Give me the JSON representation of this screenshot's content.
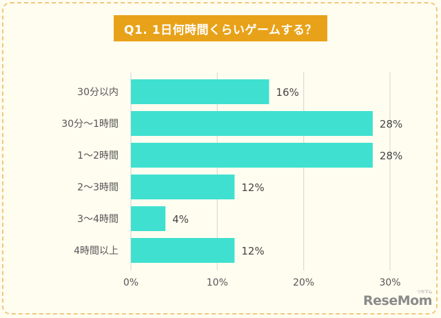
{
  "chart_data": {
    "type": "bar",
    "orientation": "horizontal",
    "title": "Q1. 1日何時間くらいゲームする？",
    "categories": [
      "30分以内",
      "30分～1時間",
      "1～2時間",
      "2～3時間",
      "3～4時間",
      "4時間以上"
    ],
    "values": [
      16,
      28,
      28,
      12,
      4,
      12
    ],
    "value_labels": [
      "16%",
      "28%",
      "28%",
      "12%",
      "4%",
      "12%"
    ],
    "xlim": [
      0,
      30
    ],
    "xticks": [
      0,
      10,
      20,
      30
    ],
    "xtick_labels": [
      "0%",
      "10%",
      "20%",
      "30%"
    ],
    "xlabel": "",
    "ylabel": "",
    "grid": true,
    "bar_color": "#40e0d0",
    "grid_color": "#d9d9d9"
  },
  "branding": {
    "logo_text": "ReseMom",
    "logo_small": "リセマム"
  }
}
